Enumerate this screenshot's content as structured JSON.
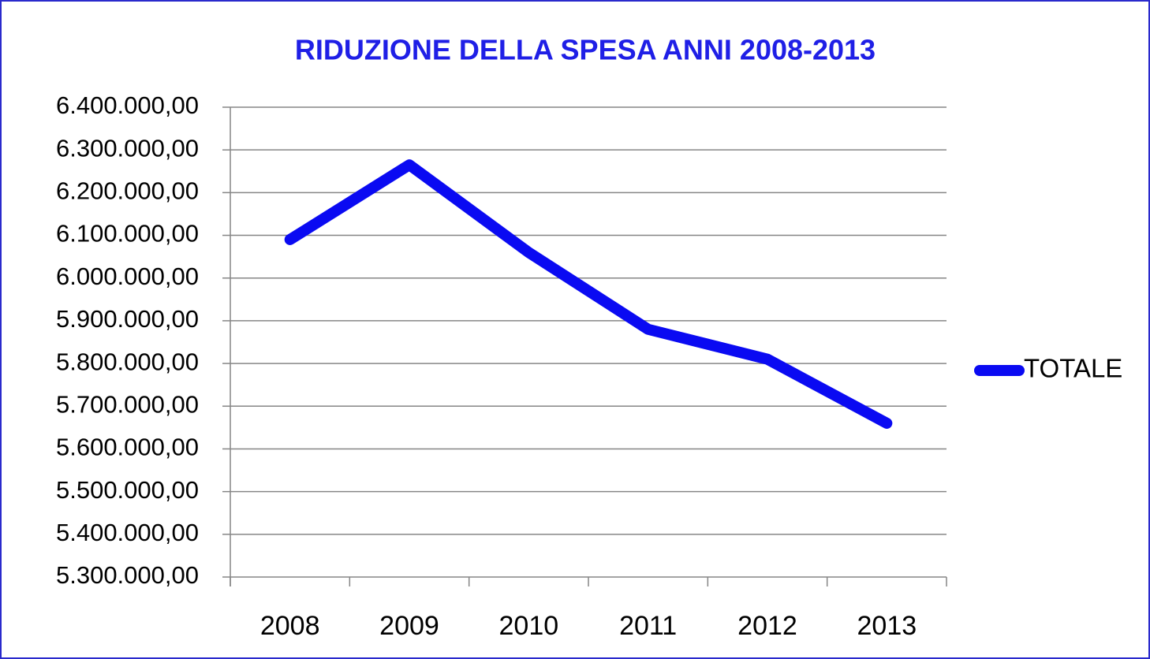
{
  "chart_data": {
    "type": "line",
    "title": "RIDUZIONE DELLA SPESA ANNI 2008-2013",
    "categories": [
      "2008",
      "2009",
      "2010",
      "2011",
      "2012",
      "2013"
    ],
    "series": [
      {
        "name": "TOTALE",
        "color": "#0a0af2",
        "values": [
          6090000,
          6265000,
          6060000,
          5880000,
          5810000,
          5660000
        ]
      }
    ],
    "ylim": [
      5300000,
      6400000
    ],
    "yticks": [
      {
        "value": 5300000,
        "label": "5.300.000,00"
      },
      {
        "value": 5400000,
        "label": "5.400.000,00"
      },
      {
        "value": 5500000,
        "label": "5.500.000,00"
      },
      {
        "value": 5600000,
        "label": "5.600.000,00"
      },
      {
        "value": 5700000,
        "label": "5.700.000,00"
      },
      {
        "value": 5800000,
        "label": "5.800.000,00"
      },
      {
        "value": 5900000,
        "label": "5.900.000,00"
      },
      {
        "value": 6000000,
        "label": "6.000.000,00"
      },
      {
        "value": 6100000,
        "label": "6.100.000,00"
      },
      {
        "value": 6200000,
        "label": "6.200.000,00"
      },
      {
        "value": 6300000,
        "label": "6.300.000,00"
      },
      {
        "value": 6400000,
        "label": "6.400.000,00"
      }
    ],
    "grid": true,
    "legend": "right"
  }
}
